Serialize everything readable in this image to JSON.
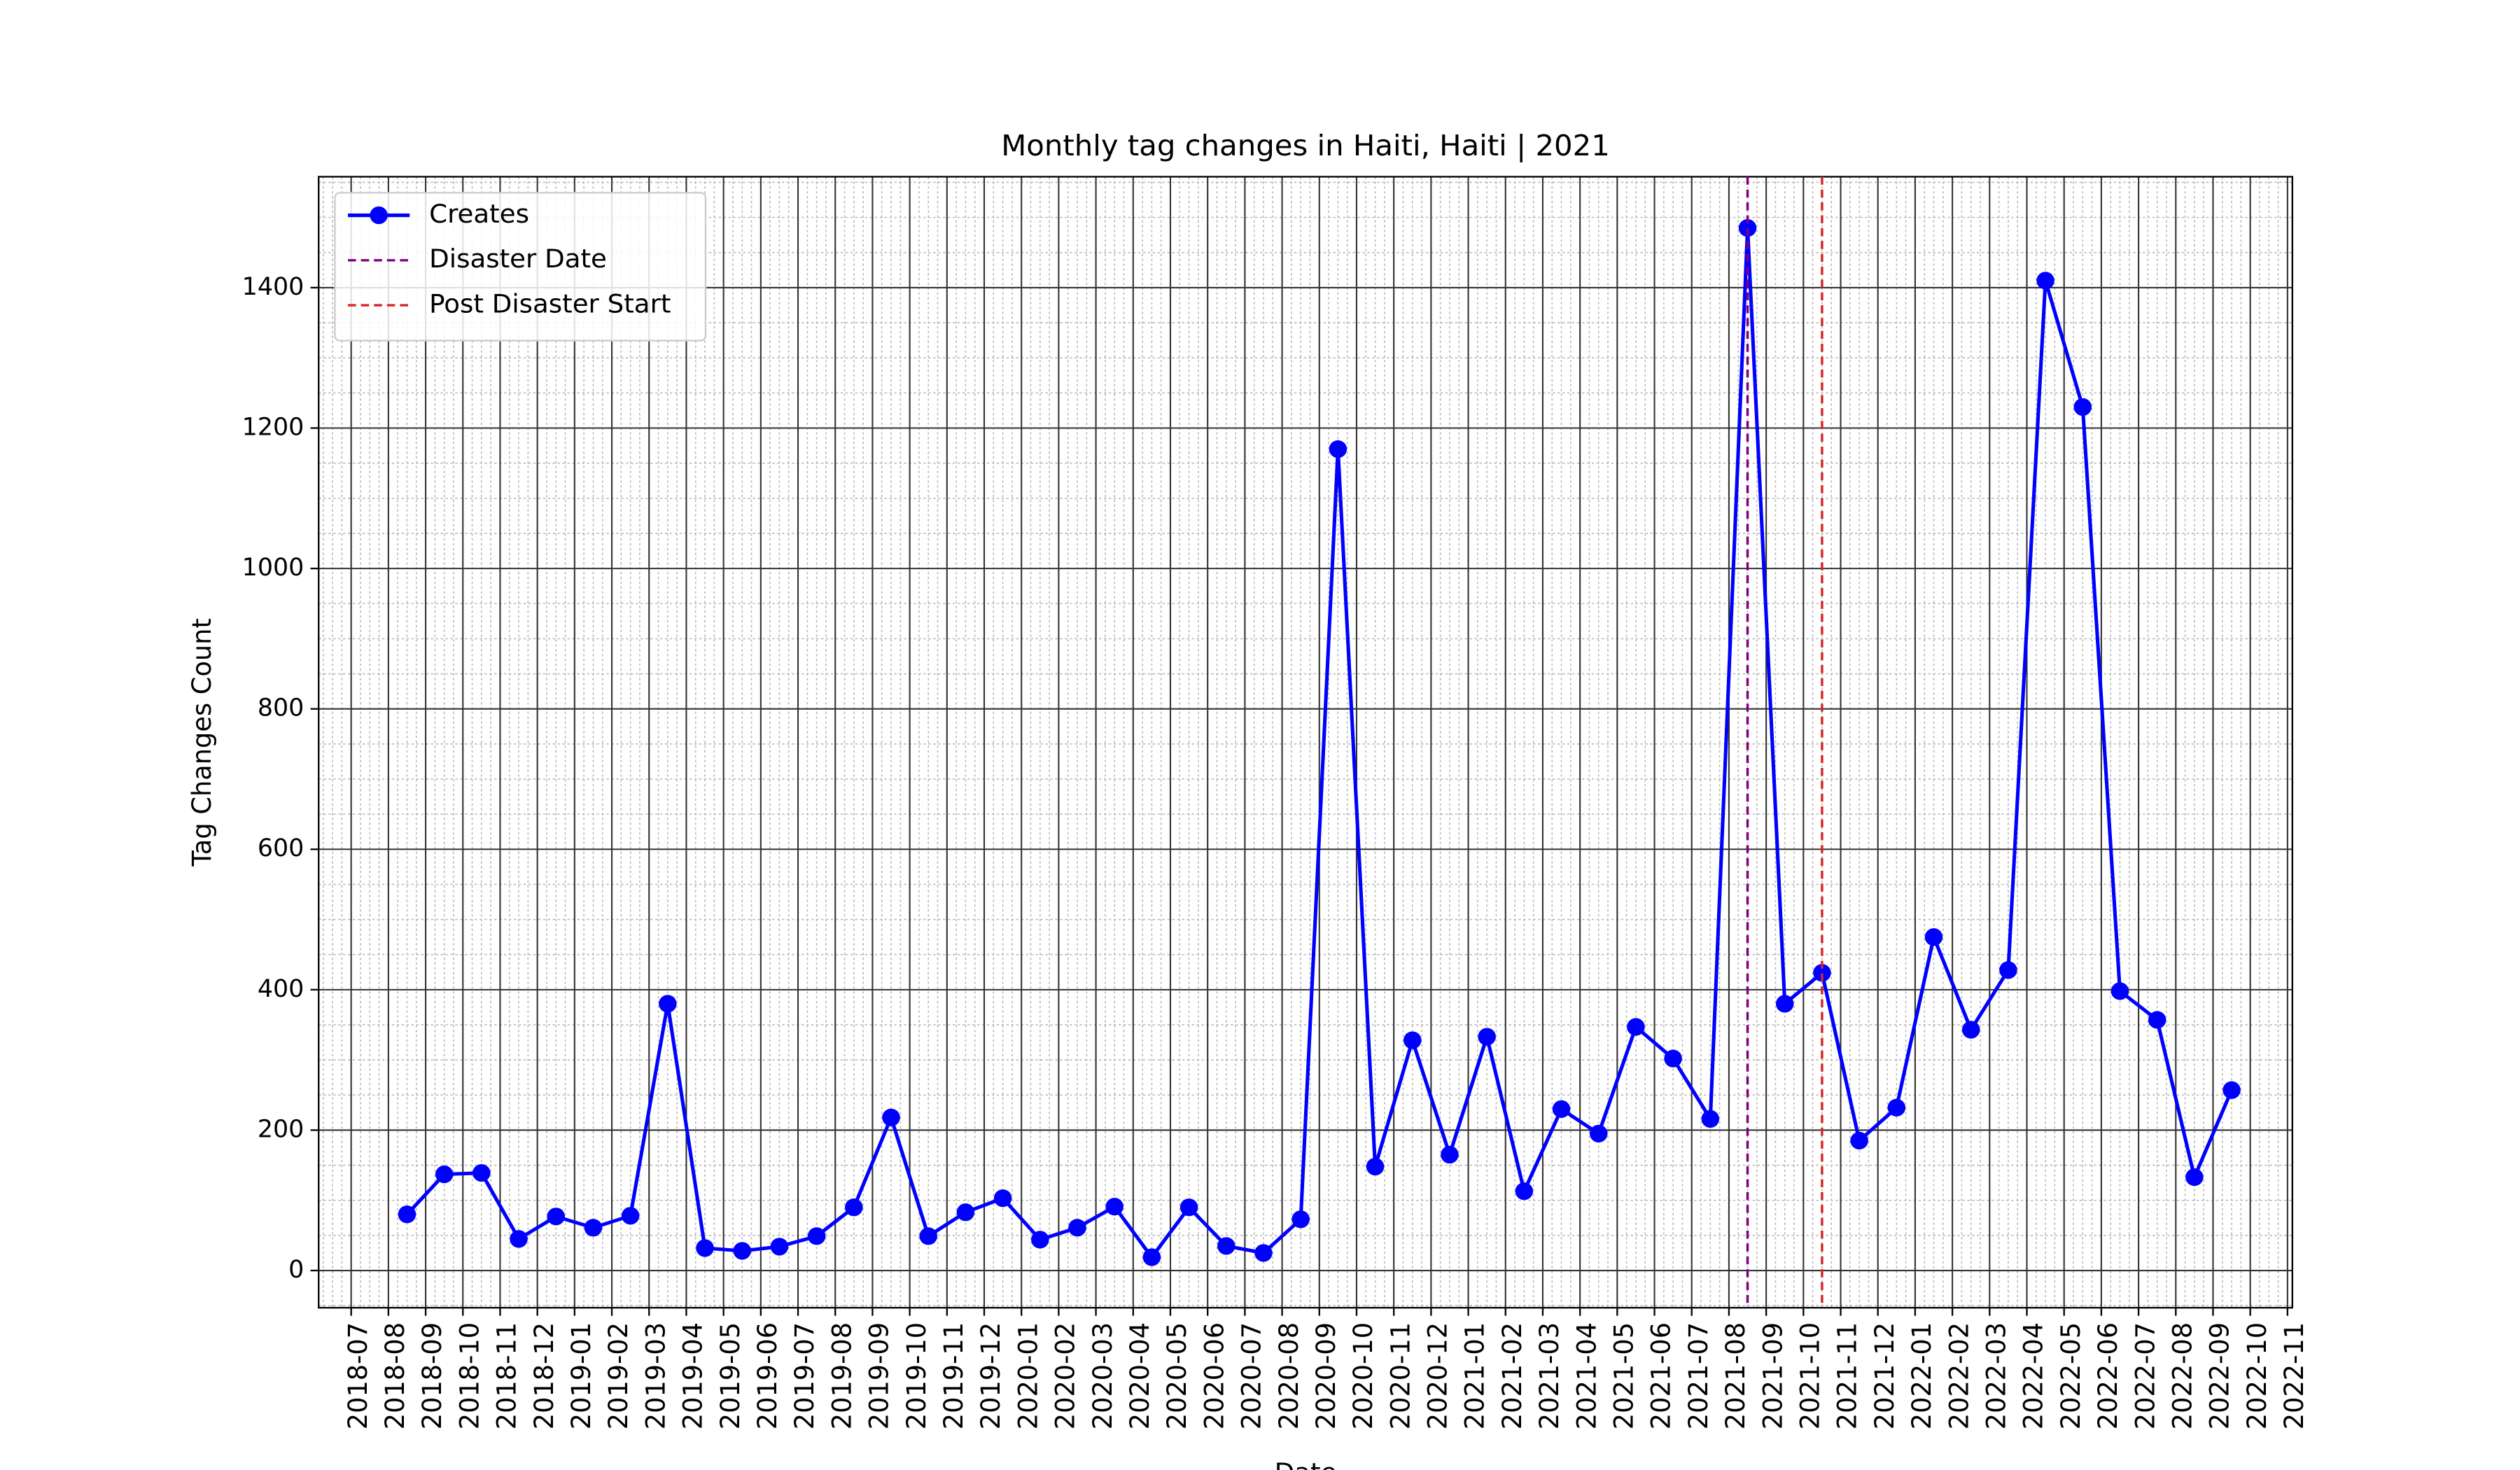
{
  "chart_data": {
    "type": "line",
    "title": "Monthly tag changes in Haiti, Haiti | 2021",
    "x_label": "Date",
    "y_label": "Tag Changes Count",
    "x": [
      "2018-08",
      "2018-09",
      "2018-10",
      "2018-11",
      "2018-12",
      "2019-01",
      "2019-02",
      "2019-03",
      "2019-04",
      "2019-05",
      "2019-06",
      "2019-07",
      "2019-08",
      "2019-09",
      "2019-10",
      "2019-11",
      "2019-12",
      "2020-01",
      "2020-02",
      "2020-03",
      "2020-04",
      "2020-05",
      "2020-06",
      "2020-07",
      "2020-08",
      "2020-09",
      "2020-10",
      "2020-11",
      "2020-12",
      "2021-01",
      "2021-02",
      "2021-03",
      "2021-04",
      "2021-05",
      "2021-06",
      "2021-07",
      "2021-08",
      "2021-09",
      "2021-10",
      "2021-11",
      "2021-12",
      "2022-01",
      "2022-02",
      "2022-03",
      "2022-04",
      "2022-05",
      "2022-06",
      "2022-07",
      "2022-08",
      "2022-09"
    ],
    "series": [
      {
        "name": "Creates",
        "color": "#0000ff",
        "values": [
          80,
          137,
          139,
          45,
          77,
          61,
          78,
          380,
          32,
          28,
          34,
          49,
          90,
          218,
          49,
          83,
          103,
          44,
          61,
          91,
          19,
          90,
          35,
          25,
          73,
          1170,
          148,
          328,
          165,
          333,
          113,
          230,
          195,
          347,
          302,
          216,
          1485,
          380,
          424,
          185,
          232,
          475,
          343,
          428,
          1410,
          1230,
          398,
          357,
          133,
          257
        ]
      }
    ],
    "vlines": [
      {
        "name": "Disaster Date",
        "x": "2021-08",
        "color": "#800080"
      },
      {
        "name": "Post Disaster Start",
        "x": "2021-10",
        "color": "#d62728"
      }
    ],
    "xticks": [
      "2018-07",
      "2018-08",
      "2018-09",
      "2018-10",
      "2018-11",
      "2018-12",
      "2019-01",
      "2019-02",
      "2019-03",
      "2019-04",
      "2019-05",
      "2019-06",
      "2019-07",
      "2019-08",
      "2019-09",
      "2019-10",
      "2019-11",
      "2019-12",
      "2020-01",
      "2020-02",
      "2020-03",
      "2020-04",
      "2020-05",
      "2020-06",
      "2020-07",
      "2020-08",
      "2020-09",
      "2020-10",
      "2020-11",
      "2020-12",
      "2021-01",
      "2021-02",
      "2021-03",
      "2021-04",
      "2021-05",
      "2021-06",
      "2021-07",
      "2021-08",
      "2021-09",
      "2021-10",
      "2021-11",
      "2021-12",
      "2022-01",
      "2022-02",
      "2022-03",
      "2022-04",
      "2022-05",
      "2022-06",
      "2022-07",
      "2022-08",
      "2022-09",
      "2022-10",
      "2022-11"
    ],
    "ylim": [
      -53,
      1558
    ],
    "yticks": [
      0,
      200,
      400,
      600,
      800,
      1000,
      1200,
      1400
    ],
    "grid": true,
    "legend": "upper left"
  }
}
